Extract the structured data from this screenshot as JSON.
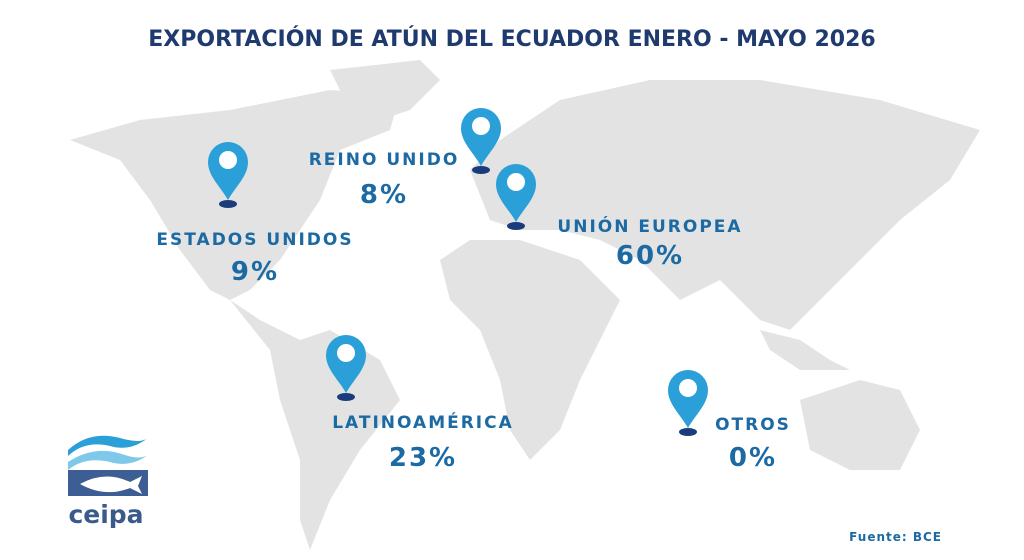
{
  "title": "EXPORTACIÓN DE ATÚN DEL ECUADOR ENERO - MAYO 2026",
  "markets": [
    {
      "label": "ESTADOS UNIDOS",
      "share": "9%"
    },
    {
      "label": "REINO UNIDO",
      "share": "8%"
    },
    {
      "label": "UNIÓN EUROPEA",
      "share": "60%"
    },
    {
      "label": "LATINOAMÉRICA",
      "share": "23%"
    },
    {
      "label": "OTROS",
      "share": "0%"
    }
  ],
  "logo": "ceipa",
  "source": "Fuente: BCE"
}
